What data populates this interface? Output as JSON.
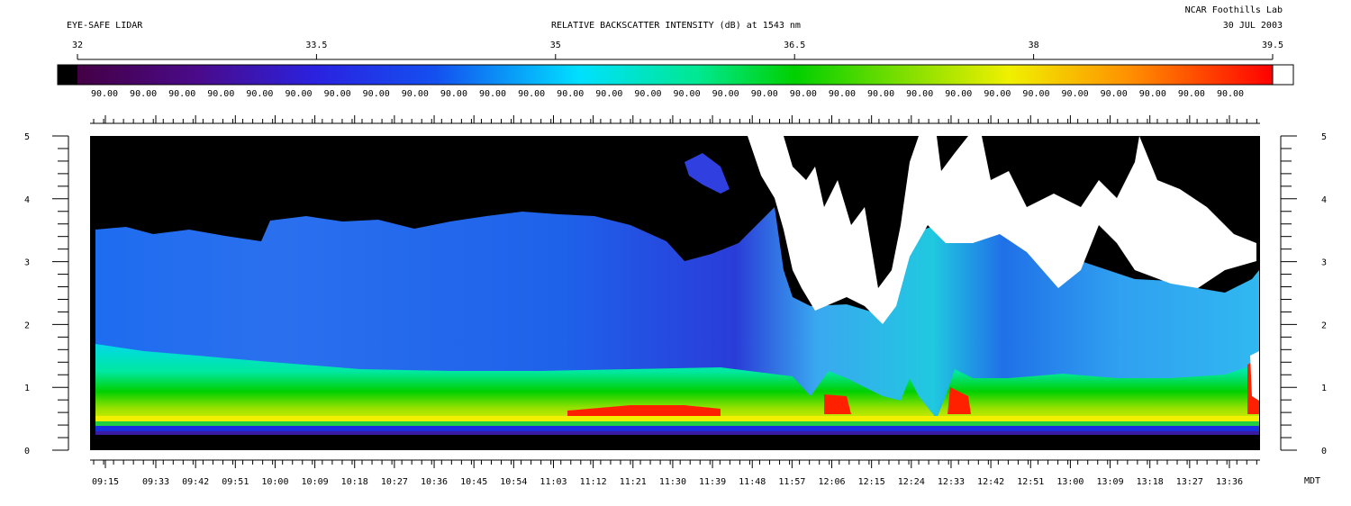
{
  "header": {
    "left_title": "EYE-SAFE LIDAR",
    "center_title": "RELATIVE BACKSCATTER INTENSITY (dB) at 1543 nm",
    "lab": "NCAR Foothills Lab",
    "date": "30 JUL 2003"
  },
  "chart_data": {
    "type": "heatmap",
    "title": "RELATIVE BACKSCATTER INTENSITY (dB) at 1543 nm",
    "colorbar": {
      "range": [
        32,
        39.5
      ],
      "ticks": [
        32,
        33.5,
        35,
        36.5,
        38,
        39.5
      ],
      "tick_labels": [
        "32",
        "33.5",
        "35",
        "36.5",
        "38",
        "39.5"
      ],
      "bin_labels": [
        "90.00",
        "90.00",
        "90.00",
        "90.00",
        "90.00",
        "90.00",
        "90.00",
        "90.00",
        "90.00",
        "90.00",
        "90.00",
        "90.00",
        "90.00",
        "90.00",
        "90.00",
        "90.00",
        "90.00",
        "90.00",
        "90.00",
        "90.00",
        "90.00",
        "90.00",
        "90.00",
        "90.00",
        "90.00",
        "90.00",
        "90.00",
        "90.00",
        "90.00",
        "90.00"
      ],
      "low_color": "#000000",
      "high_color": "#ffffff"
    },
    "y_axis": {
      "range": [
        0,
        5
      ],
      "ticks": [
        0,
        1,
        2,
        3,
        4,
        5
      ],
      "tick_labels": [
        "0",
        "1",
        "2",
        "3",
        "4",
        "5"
      ]
    },
    "x_axis": {
      "tick_labels": [
        "09:15",
        "09:33",
        "09:42",
        "09:51",
        "10:00",
        "10:09",
        "10:18",
        "10:27",
        "10:36",
        "10:45",
        "10:54",
        "11:03",
        "11:12",
        "11:21",
        "11:30",
        "11:39",
        "11:48",
        "11:57",
        "12:06",
        "12:15",
        "12:24",
        "12:33",
        "12:42",
        "12:51",
        "13:00",
        "13:09",
        "13:18",
        "13:27",
        "13:36"
      ],
      "unit": "MDT"
    },
    "background_color": "#000000"
  }
}
